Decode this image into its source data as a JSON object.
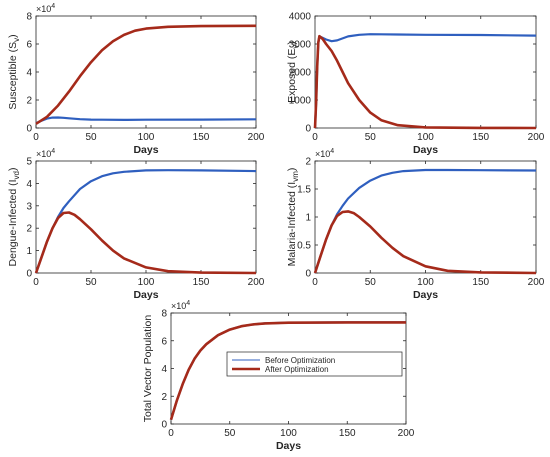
{
  "chart_data": [
    {
      "type": "line",
      "xlabel": "Days",
      "ylabel": "Susceptible (S",
      "ylabel_sub": "v",
      "ylabel_close": ")",
      "xlim": [
        0,
        200
      ],
      "ylim": [
        0,
        80000
      ],
      "xticks": [
        0,
        50,
        100,
        150,
        200
      ],
      "yticks": [
        0,
        2,
        4,
        6,
        8
      ],
      "y_exponent": "×10",
      "y_exponent_power": "4",
      "y_scale": 10000,
      "series": [
        {
          "color": "#2f5fbf",
          "x": [
            0,
            5,
            10,
            15,
            20,
            25,
            30,
            40,
            50,
            60,
            80,
            100,
            150,
            200
          ],
          "y": [
            3500,
            5200,
            6700,
            7400,
            7500,
            7300,
            6900,
            6300,
            6000,
            5900,
            5800,
            5900,
            6000,
            6200
          ]
        },
        {
          "color": "#a52a1a",
          "x": [
            0,
            10,
            20,
            30,
            40,
            50,
            60,
            70,
            80,
            90,
            100,
            120,
            150,
            200
          ],
          "y": [
            3000,
            8000,
            16000,
            26000,
            37000,
            47000,
            55500,
            62000,
            66500,
            69500,
            71000,
            72300,
            72800,
            73000
          ]
        }
      ]
    },
    {
      "type": "line",
      "xlabel": "Days",
      "ylabel": "Exposed (E",
      "ylabel_sub": "v",
      "ylabel_close": ")",
      "xlim": [
        0,
        200
      ],
      "ylim": [
        0,
        4000
      ],
      "xticks": [
        0,
        50,
        100,
        150,
        200
      ],
      "yticks": [
        0,
        1000,
        2000,
        3000,
        4000
      ],
      "series": [
        {
          "color": "#2f5fbf",
          "x": [
            0,
            1,
            2,
            3,
            4,
            5,
            7,
            10,
            15,
            20,
            25,
            30,
            40,
            50,
            75,
            100,
            150,
            200
          ],
          "y": [
            0,
            900,
            2200,
            3050,
            3280,
            3250,
            3220,
            3160,
            3100,
            3130,
            3200,
            3270,
            3330,
            3350,
            3340,
            3330,
            3320,
            3300
          ]
        },
        {
          "color": "#a52a1a",
          "x": [
            0,
            1,
            2,
            3,
            4,
            5,
            7,
            10,
            15,
            20,
            25,
            30,
            40,
            50,
            60,
            75,
            100,
            150,
            200
          ],
          "y": [
            0,
            900,
            2200,
            3050,
            3280,
            3250,
            3180,
            3000,
            2750,
            2400,
            2000,
            1600,
            1000,
            550,
            280,
            100,
            20,
            5,
            0
          ]
        }
      ]
    },
    {
      "type": "line",
      "xlabel": "Days",
      "ylabel": "Dengue-Infected (I",
      "ylabel_sub": "vd",
      "ylabel_close": ")",
      "xlim": [
        0,
        200
      ],
      "ylim": [
        0,
        50000
      ],
      "xticks": [
        0,
        50,
        100,
        150,
        200
      ],
      "yticks": [
        0,
        1,
        2,
        3,
        4,
        5
      ],
      "y_exponent": "×10",
      "y_exponent_power": "4",
      "y_scale": 10000,
      "series": [
        {
          "color": "#2f5fbf",
          "x": [
            0,
            5,
            10,
            15,
            20,
            25,
            30,
            40,
            50,
            60,
            70,
            80,
            100,
            120,
            150,
            200
          ],
          "y": [
            0,
            7000,
            14000,
            20000,
            25000,
            29000,
            32000,
            37500,
            41000,
            43200,
            44500,
            45200,
            45800,
            45900,
            45800,
            45500
          ]
        },
        {
          "color": "#a52a1a",
          "x": [
            0,
            5,
            10,
            15,
            20,
            25,
            30,
            35,
            40,
            50,
            60,
            70,
            80,
            100,
            120,
            150,
            200
          ],
          "y": [
            0,
            7000,
            14000,
            20000,
            24500,
            26800,
            27000,
            26000,
            24000,
            19500,
            14500,
            10000,
            6500,
            2500,
            800,
            200,
            0
          ]
        }
      ]
    },
    {
      "type": "line",
      "xlabel": "Days",
      "ylabel": "Malaria-Infected (I",
      "ylabel_sub": "vm",
      "ylabel_close": ")",
      "xlim": [
        0,
        200
      ],
      "ylim": [
        0,
        20000
      ],
      "xticks": [
        0,
        50,
        100,
        150,
        200
      ],
      "yticks": [
        0,
        0.5,
        1,
        1.5,
        2
      ],
      "y_exponent": "×10",
      "y_exponent_power": "4",
      "y_scale": 10000,
      "series": [
        {
          "color": "#2f5fbf",
          "x": [
            0,
            5,
            10,
            15,
            20,
            25,
            30,
            40,
            50,
            60,
            70,
            80,
            100,
            120,
            150,
            200
          ],
          "y": [
            0,
            3000,
            6000,
            8500,
            10500,
            12000,
            13300,
            15200,
            16500,
            17400,
            17900,
            18200,
            18400,
            18400,
            18350,
            18300
          ]
        },
        {
          "color": "#a52a1a",
          "x": [
            0,
            5,
            10,
            15,
            20,
            25,
            30,
            35,
            40,
            50,
            60,
            70,
            80,
            100,
            120,
            150,
            200
          ],
          "y": [
            0,
            3000,
            6000,
            8500,
            10200,
            10900,
            11000,
            10700,
            10000,
            8300,
            6300,
            4500,
            3000,
            1200,
            400,
            100,
            0
          ]
        }
      ]
    },
    {
      "type": "line",
      "xlabel": "Days",
      "ylabel": "Total Vector Population",
      "xlim": [
        0,
        200
      ],
      "ylim": [
        0,
        80000
      ],
      "xticks": [
        0,
        50,
        100,
        150,
        200
      ],
      "yticks": [
        0,
        2,
        4,
        6,
        8
      ],
      "y_exponent": "×10",
      "y_exponent_power": "4",
      "y_scale": 10000,
      "legend_position": "center-right",
      "series": [
        {
          "name": "Before Optimization",
          "color": "#2f5fbf",
          "x": [
            0,
            5,
            10,
            15,
            20,
            25,
            30,
            40,
            50,
            60,
            70,
            80,
            100,
            150,
            200
          ],
          "y": [
            3000,
            17000,
            29000,
            39000,
            47000,
            53000,
            57500,
            64000,
            68000,
            70500,
            71800,
            72500,
            73000,
            73200,
            73200
          ]
        },
        {
          "name": "After Optimization",
          "color": "#a52a1a",
          "x": [
            0,
            5,
            10,
            15,
            20,
            25,
            30,
            40,
            50,
            60,
            70,
            80,
            100,
            150,
            200
          ],
          "y": [
            3000,
            17000,
            29000,
            39000,
            47000,
            53000,
            57500,
            64000,
            68000,
            70500,
            71800,
            72500,
            73000,
            73200,
            73200
          ]
        }
      ]
    }
  ]
}
